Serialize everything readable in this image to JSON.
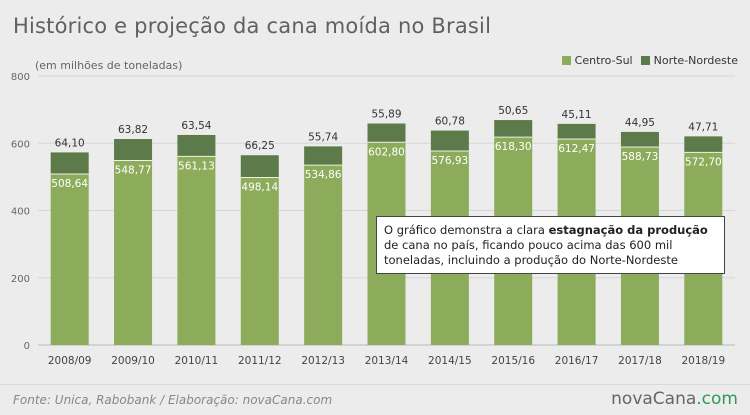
{
  "header": {
    "title": "Histórico e projeção da cana moída no Brasil",
    "unit_note": "(em milhões de toneladas)"
  },
  "legend": [
    {
      "label": "Centro-Sul",
      "color": "#8cac5c"
    },
    {
      "label": "Norte-Nordeste",
      "color": "#5c7a4a"
    }
  ],
  "annotation": {
    "before": "O gráfico demonstra a clara ",
    "bold": "estagnação da produção",
    "after": " de cana no país, ficando pouco acima das 600 mil toneladas, incluindo a produção do Norte-Nordeste"
  },
  "footer": {
    "source": "Fonte: Unica, Rabobank / Elaboração: novaCana.com",
    "logo_main": "novaCana",
    "logo_suffix": ".com"
  },
  "chart_data": {
    "type": "bar",
    "stacked": true,
    "categories": [
      "2008/09",
      "2009/10",
      "2010/11",
      "2011/12",
      "2012/13",
      "2013/14",
      "2014/15",
      "2015/16",
      "2016/17",
      "2017/18",
      "2018/19"
    ],
    "series": [
      {
        "name": "Centro-Sul",
        "color": "#8cac5c",
        "values": [
          508.64,
          548.77,
          561.13,
          498.14,
          534.86,
          602.8,
          576.93,
          618.3,
          612.47,
          588.73,
          572.7
        ],
        "labels": [
          "508,64",
          "548,77",
          "561,13",
          "498,14",
          "534,86",
          "602,80",
          "576,93",
          "618,30",
          "612,47",
          "588,73",
          "572,70"
        ]
      },
      {
        "name": "Norte-Nordeste",
        "color": "#5c7a4a",
        "values": [
          64.1,
          63.82,
          63.54,
          66.25,
          55.74,
          55.89,
          60.78,
          50.65,
          45.11,
          44.95,
          47.71
        ],
        "labels": [
          "64,10",
          "63,82",
          "63,54",
          "66,25",
          "55,74",
          "55,89",
          "60,78",
          "50,65",
          "45,11",
          "44,95",
          "47,71"
        ]
      }
    ],
    "yticks": [
      "0",
      "200",
      "400",
      "600",
      "800"
    ],
    "ylim": [
      0,
      800
    ],
    "grid": true,
    "legend_position": "top-right"
  }
}
